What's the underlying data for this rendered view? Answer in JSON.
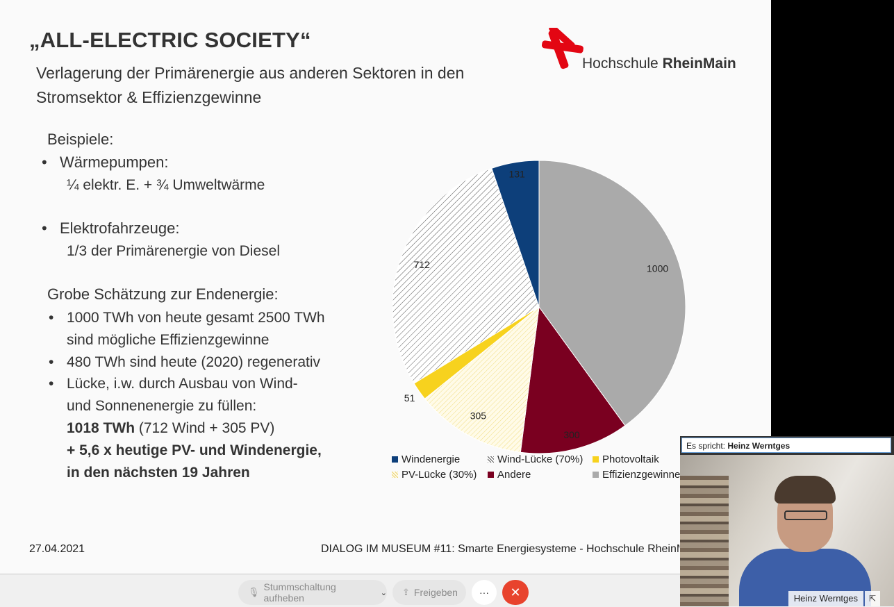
{
  "slide": {
    "title": "„ALL-ELECTRIC SOCIETY“",
    "subtitle": "Verlagerung der Primärenergie aus anderen Sektoren in den Stromsektor & Effizienzgewinne",
    "logo_text_regular": "Hochschule ",
    "logo_text_bold": "RheinMain",
    "brand_color": "#e30613",
    "examples_heading": "Beispiele:",
    "heat_pumps": "Wärmepumpen:",
    "heat_pumps_detail": "¼ elektr. E. + ¾ Umweltwärme",
    "ev": "Elektrofahrzeuge:",
    "ev_detail": "1/3 der Primärenergie von Diesel",
    "estimate_heading": "Grobe Schätzung zur Endenergie:",
    "b1_line1": "1000 TWh von heute gesamt 2500 TWh",
    "b1_line2": "sind mögliche Effizienzgewinne",
    "b2": "480 TWh sind heute (2020) regenerativ",
    "b3_line1": "Lücke, i.w. durch Ausbau von Wind-",
    "b3_line2": "und Sonnenenergie zu füllen:",
    "b3_line3_bold": "1018 TWh",
    "b3_line3_rest": " (712 Wind + 305 PV)",
    "b3_line4": "+ 5,6 x heutige PV- und Windenergie,",
    "b3_line5": "in den nächsten 19 Jahren",
    "footer_date": "27.04.2021",
    "footer_text": "DIALOG IM MUSEUM #11: Smarte Energiesysteme - Hochschule RheinM"
  },
  "chart_data": {
    "type": "pie",
    "slices": [
      {
        "name": "Windenergie",
        "value": 131,
        "color": "#0d3f7a"
      },
      {
        "name": "Effizienzgewinne",
        "value": 1000,
        "color": "#aaaaaa"
      },
      {
        "name": "Andere",
        "value": 300,
        "color": "#7a0020"
      },
      {
        "name": "PV-Lücke (30%)",
        "value": 305,
        "color": "#f4e58a"
      },
      {
        "name": "Photovoltaik",
        "value": 51,
        "color": "#f7d21e"
      },
      {
        "name": "Wind-Lücke (70%)",
        "value": 712,
        "color": "#555555"
      }
    ],
    "legend_order": [
      "Windenergie",
      "Wind-Lücke (70%)",
      "Photovoltaik",
      "PV-Lücke (30%)",
      "Andere",
      "Effizienzgewinne"
    ],
    "legend_placement": "bottom"
  },
  "toolbar": {
    "mute_label": "Stummschaltung aufheben",
    "share_label": "Freigeben",
    "more_label": "···",
    "hangup_icon": "close-icon"
  },
  "speaker": {
    "label_prefix": "Es spricht:",
    "name": "Heinz Werntges",
    "tag_name": "Heinz Werntges"
  }
}
